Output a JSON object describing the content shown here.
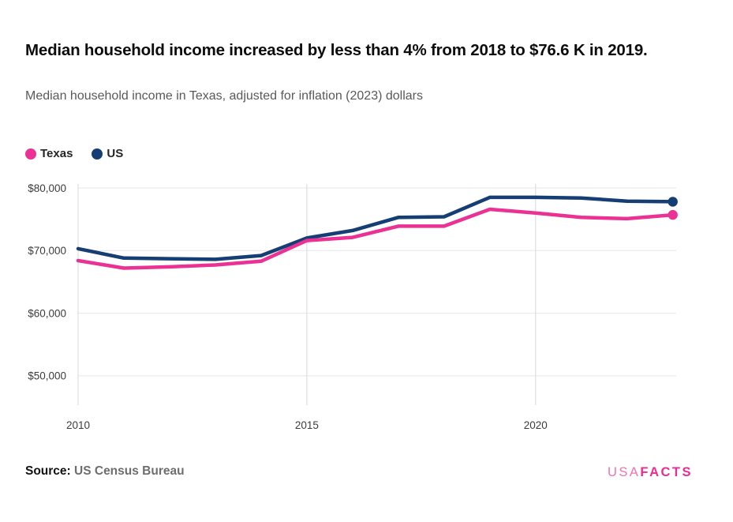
{
  "header": {
    "title": "Median household income increased by less than 4% from 2018 to $76.6 K in 2019.",
    "subtitle": "Median household income in Texas, adjusted for inflation (2023) dollars"
  },
  "colors": {
    "texas_line": "#ec3195",
    "us_line": "#143e74",
    "gridline": "#e7e7e7",
    "axis_line": "#d8d8d8",
    "tick_label": "#3c3c3c",
    "logo_usa": "#f272ae",
    "logo_facts": "#ec2b92"
  },
  "chart_data": {
    "type": "line",
    "x": [
      2010,
      2011,
      2012,
      2013,
      2014,
      2015,
      2016,
      2017,
      2018,
      2019,
      2020,
      2021,
      2022,
      2023
    ],
    "series": [
      {
        "name": "Texas",
        "color": "#ec3195",
        "values": [
          68400,
          67200,
          67400,
          67700,
          68300,
          71600,
          72100,
          73900,
          73900,
          76600,
          76000,
          75300,
          75100,
          75700
        ]
      },
      {
        "name": "US",
        "color": "#143e74",
        "values": [
          70300,
          68800,
          68700,
          68600,
          69200,
          72000,
          73200,
          75300,
          75400,
          78500,
          78500,
          78400,
          77900,
          77800
        ]
      }
    ],
    "title": "Median household income increased by less than 4% from 2018 to $76.6 K in 2019.",
    "subtitle": "Median household income in Texas, adjusted for inflation (2023) dollars",
    "yticks": [
      {
        "value": 80000,
        "label": "$80,000"
      },
      {
        "value": 70000,
        "label": "$70,000"
      },
      {
        "value": 60000,
        "label": "$60,000"
      },
      {
        "value": 50000,
        "label": "$50,000"
      }
    ],
    "xticks": [
      {
        "value": 2010,
        "label": "2010"
      },
      {
        "value": 2015,
        "label": "2015"
      },
      {
        "value": 2020,
        "label": "2020"
      }
    ],
    "ylim": [
      45000,
      81500
    ],
    "xlim": [
      2010,
      2023
    ],
    "grid": true,
    "legend_position": "top-left",
    "endpoint_markers": true
  },
  "source": {
    "label": "Source:",
    "value": "US Census Bureau"
  },
  "logo": {
    "part1": "USA",
    "part2": "FACTS"
  }
}
